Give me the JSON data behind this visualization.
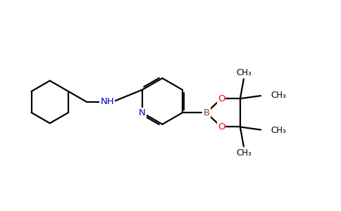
{
  "background_color": "#ffffff",
  "bond_color": "#000000",
  "N_color": "#0000cd",
  "O_color": "#ff0000",
  "B_color": "#8b4513",
  "figsize": [
    4.84,
    3.0
  ],
  "dpi": 100,
  "xlim": [
    0,
    9.5
  ],
  "ylim": [
    0,
    5.6
  ]
}
